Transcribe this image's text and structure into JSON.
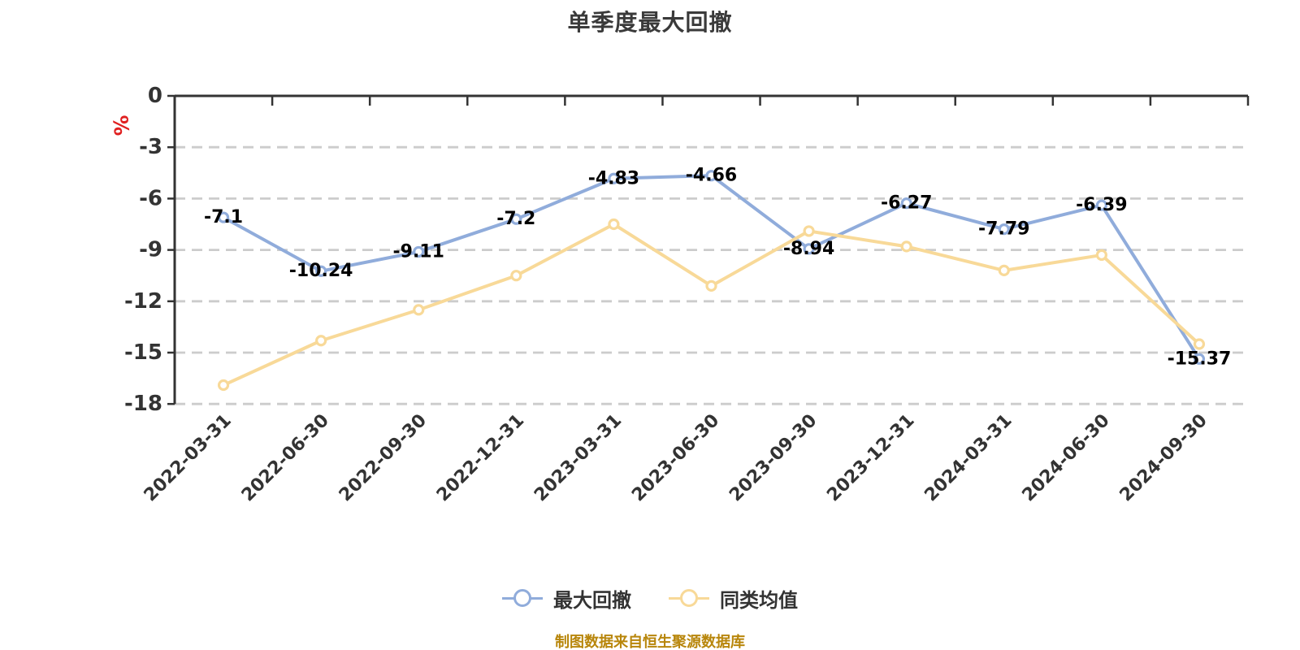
{
  "title": "单季度最大回撤",
  "y_axis_unit": "%",
  "footer": "制图数据来自恒生聚源数据库",
  "legend": [
    {
      "label": "最大回撤",
      "color": "#90acdb"
    },
    {
      "label": "同类均值",
      "color": "#f8d998"
    }
  ],
  "style": {
    "axis_color": "#333333",
    "grid_color": "#cccccc",
    "tick_label_color": "#333333",
    "data_label_color": "#000000",
    "marker_fill": "#ffffff",
    "unit_color": "#e02020",
    "footer_color": "#b8860b"
  },
  "chart_data": {
    "type": "line",
    "title": "单季度最大回撤",
    "categories": [
      "2022-03-31",
      "2022-06-30",
      "2022-09-30",
      "2022-12-31",
      "2023-03-31",
      "2023-06-30",
      "2023-09-30",
      "2023-12-31",
      "2024-03-31",
      "2024-06-30",
      "2024-09-30"
    ],
    "series": [
      {
        "name": "最大回撤",
        "color": "#90acdb",
        "labeled": true,
        "values": [
          -7.1,
          -10.24,
          -9.11,
          -7.2,
          -4.83,
          -4.66,
          -8.94,
          -6.27,
          -7.79,
          -6.39,
          -15.37
        ]
      },
      {
        "name": "同类均值",
        "color": "#f8d998",
        "labeled": false,
        "values": [
          -16.9,
          -14.3,
          -12.5,
          -10.5,
          -7.5,
          -11.1,
          -7.9,
          -8.8,
          -10.2,
          -9.3,
          -14.5
        ]
      }
    ],
    "ylabel": "%",
    "xlabel": "",
    "ylim": [
      -18,
      0
    ],
    "yticks": [
      0,
      -3,
      -6,
      -9,
      -12,
      -15,
      -18
    ],
    "grid": "horizontal dashed",
    "legend_position": "bottom",
    "x_axis_position": "top (at 0)",
    "note": "制图数据来自恒生聚源数据库"
  }
}
